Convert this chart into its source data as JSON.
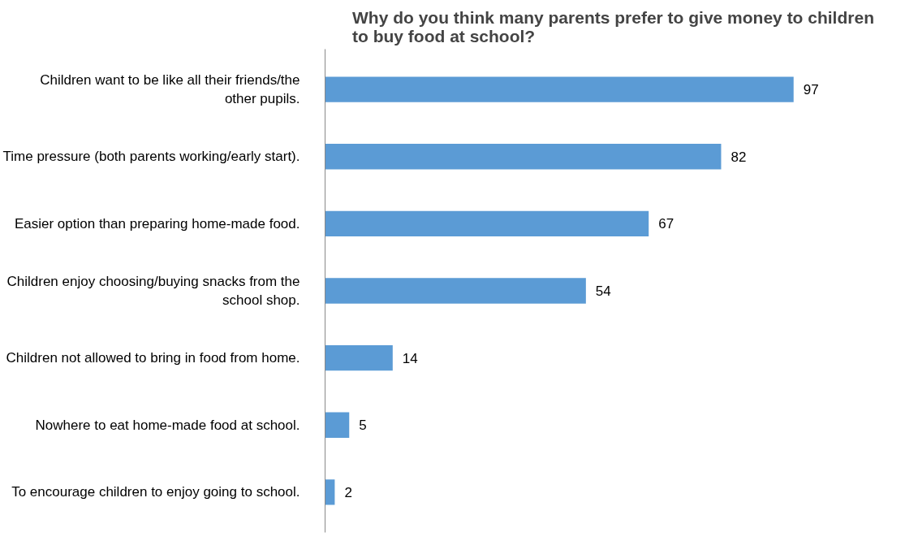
{
  "chart_data": {
    "type": "bar",
    "orientation": "horizontal",
    "title": "Why do you think many parents prefer to give money to children to buy food at school?",
    "categories": [
      "Children want to be like all their friends/the other pupils.",
      "Time pressure (both parents working/early start).",
      "Easier option than preparing home-made food.",
      "Children enjoy choosing/buying snacks from the school shop.",
      "Children not allowed to bring in food from home.",
      "Nowhere to eat home-made food at school.",
      "To encourage children to enjoy going to school."
    ],
    "values": [
      97,
      82,
      67,
      54,
      14,
      5,
      2
    ],
    "color": "#5b9bd5",
    "data_labels": true,
    "tick_labels": "y"
  }
}
